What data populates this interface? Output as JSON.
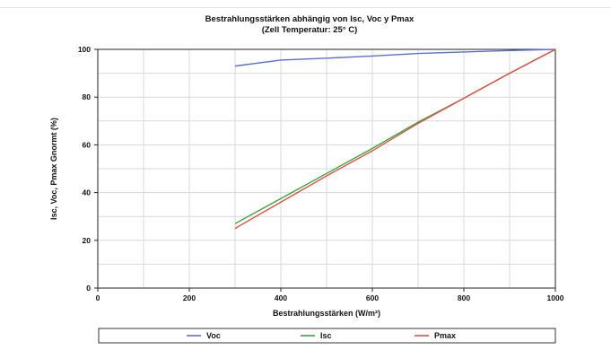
{
  "chart_data": {
    "type": "line",
    "title": "Bestrahlungsstärken abhängig von Isc, Voc y Pmax",
    "subtitle": "(Zell Temperatur: 25° C)",
    "xlabel": "Bestrahlungsstärken (W/m²)",
    "ylabel": "Isc, Voc, Pmax Gnormt (%)",
    "xlim": [
      0,
      1000
    ],
    "ylim": [
      0,
      100
    ],
    "xticks": [
      0,
      200,
      400,
      600,
      800,
      1000
    ],
    "yticks": [
      0,
      20,
      40,
      60,
      80,
      100
    ],
    "grid": true,
    "legend_position": "bottom",
    "series": [
      {
        "name": "Voc",
        "color": "#5a6fd6",
        "x": [
          300,
          400,
          500,
          600,
          700,
          800,
          900,
          1000
        ],
        "y": [
          93,
          95.5,
          96.3,
          97.2,
          98.3,
          98.9,
          99.5,
          100
        ]
      },
      {
        "name": "Isc",
        "color": "#3aa63a",
        "x": [
          300,
          400,
          500,
          600,
          700,
          800,
          900,
          1000
        ],
        "y": [
          27,
          37.5,
          48,
          58.5,
          69.5,
          79.5,
          90,
          100
        ]
      },
      {
        "name": "Pmax",
        "color": "#e0504a",
        "x": [
          300,
          400,
          500,
          600,
          700,
          800,
          900,
          1000
        ],
        "y": [
          25,
          36,
          47,
          57.5,
          69,
          79.5,
          90,
          100
        ]
      }
    ]
  }
}
